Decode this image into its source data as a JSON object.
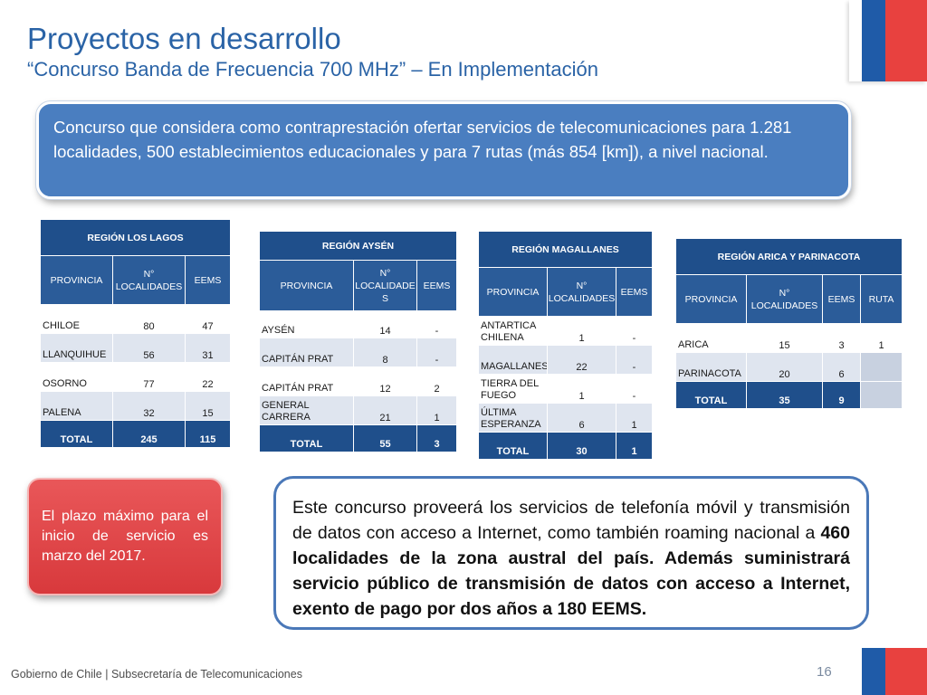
{
  "header": {
    "title": "Proyectos en desarrollo",
    "subtitle": "“Concurso Banda de Frecuencia 700 MHz” – En Implementación"
  },
  "intro_text": "Concurso que considera como contraprestación ofertar servicios de telecomunicaciones para 1.281 localidades, 500 establecimientos educacionales y para 7 rutas (más 854 [km]), a nivel nacional.",
  "tables": {
    "los_lagos": {
      "title": "REGIÓN LOS LAGOS",
      "col_provincia": "PROVINCIA",
      "col_localidades": "N° LOCALIDADES",
      "col_eems": "EEMS",
      "rows": [
        {
          "provincia": "CHILOE",
          "localidades": "80",
          "eems": "47"
        },
        {
          "provincia": "LLANQUIHUE",
          "localidades": "56",
          "eems": "31"
        },
        {
          "provincia": "OSORNO",
          "localidades": "77",
          "eems": "22"
        },
        {
          "provincia": "PALENA",
          "localidades": "32",
          "eems": "15"
        }
      ],
      "total_label": "TOTAL",
      "total_localidades": "245",
      "total_eems": "115"
    },
    "aysen": {
      "title": "REGIÓN AYSÉN",
      "col_provincia": "PROVINCIA",
      "col_localidades": "N° LOCALIDADE S",
      "col_eems": "EEMS",
      "rows": [
        {
          "provincia": "AYSÉN",
          "localidades": "14",
          "eems": "-"
        },
        {
          "provincia": "CAPITÁN PRAT",
          "localidades": "8",
          "eems": "-"
        },
        {
          "provincia": "CAPITÁN PRAT",
          "localidades": "12",
          "eems": "2"
        },
        {
          "provincia": "GENERAL CARRERA",
          "localidades": "21",
          "eems": "1"
        }
      ],
      "total_label": "TOTAL",
      "total_localidades": "55",
      "total_eems": "3"
    },
    "magallanes": {
      "title": "REGIÓN  MAGALLANES",
      "col_provincia": "PROVINCIA",
      "col_localidades": "N° LOCALIDADES",
      "col_eems": "EEMS",
      "rows": [
        {
          "provincia": "ANTARTICA CHILENA",
          "localidades": "1",
          "eems": "-"
        },
        {
          "provincia": "MAGALLANES",
          "localidades": "22",
          "eems": "-"
        },
        {
          "provincia": "TIERRA DEL FUEGO",
          "localidades": "1",
          "eems": "-"
        },
        {
          "provincia": "ÚLTIMA ESPERANZA",
          "localidades": "6",
          "eems": "1"
        }
      ],
      "total_label": "TOTAL",
      "total_localidades": "30",
      "total_eems": "1"
    },
    "arica": {
      "title": "REGIÓN ARICA Y PARINACOTA",
      "col_provincia": "PROVINCIA",
      "col_localidades": "N° LOCALIDADES",
      "col_eems": "EEMS",
      "col_ruta": "RUTA",
      "rows": [
        {
          "provincia": "ARICA",
          "localidades": "15",
          "eems": "3",
          "ruta": "1"
        },
        {
          "provincia": "PARINACOTA",
          "localidades": "20",
          "eems": "6",
          "ruta": ""
        }
      ],
      "total_label": "TOTAL",
      "total_localidades": "35",
      "total_eems": "9",
      "total_ruta": ""
    }
  },
  "plazo_text": "El plazo máximo para el inicio de servicio es marzo del 2017.",
  "concurso": {
    "text_plain": "Este concurso  proveerá  los servicios de telefonía móvil y transmisión de datos con acceso a Internet, como también roaming nacional a ",
    "text_bold": "460 localidades de la zona austral del país. Además suministrará servicio público de transmisión de datos con acceso a Internet, exento de pago por dos años a 180 EEMS."
  },
  "footer": {
    "text": "Gobierno de Chile | Subsecretaría de Telecomunicaciones",
    "page_number": "16"
  },
  "colors": {
    "title_blue": "#2a63a6",
    "table_header": "#1f4f8b",
    "flag_blue": "#1f5ba8",
    "flag_red": "#e8413f",
    "callout_red": "#e04a4c",
    "callout_blue": "#4a7ec0"
  }
}
